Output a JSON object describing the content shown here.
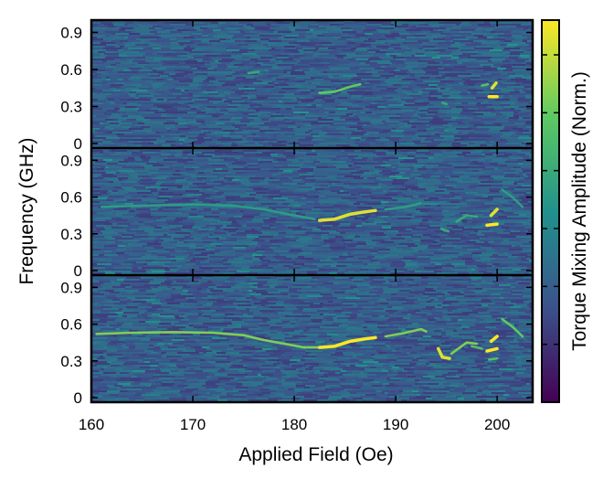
{
  "chart_data": {
    "type": "heatmap",
    "xlabel": "Applied Field (Oe)",
    "ylabel": "Frequency (GHz)",
    "colorbar_label": "Torque Mixing Amplitude (Norm.)",
    "colormap": "viridis",
    "colormap_stops": [
      "#440154",
      "#3b528b",
      "#21918c",
      "#5ec962",
      "#fde725"
    ],
    "xlim": [
      160,
      203.5
    ],
    "ylim": [
      0,
      1.0
    ],
    "x_ticks": [
      160,
      170,
      180,
      190,
      200
    ],
    "x_tick_labels": [
      "160",
      "170",
      "180",
      "190",
      "200"
    ],
    "y_ticks": [
      0,
      0.3,
      0.6,
      0.9
    ],
    "y_tick_labels": [
      "0",
      "0.3",
      "0.6",
      "0.9"
    ],
    "panels": [
      {
        "name": "top",
        "traces": [
          {
            "points": [
              [
                175.5,
                0.57
              ],
              [
                176.5,
                0.58
              ]
            ],
            "level": 0.6
          },
          {
            "points": [
              [
                182.5,
                0.41
              ],
              [
                184,
                0.42
              ],
              [
                185.5,
                0.46
              ],
              [
                186.5,
                0.48
              ]
            ],
            "level": 0.75
          },
          {
            "points": [
              [
                194.6,
                0.33
              ],
              [
                195,
                0.32
              ]
            ],
            "level": 0.6
          },
          {
            "points": [
              [
                199.2,
                0.38
              ],
              [
                200,
                0.38
              ]
            ],
            "level": 1.0
          },
          {
            "points": [
              [
                199.5,
                0.45
              ],
              [
                199.9,
                0.49
              ]
            ],
            "level": 0.95
          },
          {
            "points": [
              [
                198.5,
                0.47
              ],
              [
                199.1,
                0.48
              ]
            ],
            "level": 0.7
          }
        ]
      },
      {
        "name": "middle",
        "traces": [
          {
            "points": [
              [
                161,
                0.52
              ],
              [
                165,
                0.53
              ],
              [
                170,
                0.54
              ],
              [
                174,
                0.53
              ],
              [
                177,
                0.5
              ],
              [
                180,
                0.45
              ],
              [
                182,
                0.42
              ]
            ],
            "level": 0.55
          },
          {
            "points": [
              [
                182.5,
                0.41
              ],
              [
                184,
                0.42
              ],
              [
                185.5,
                0.46
              ],
              [
                187,
                0.48
              ],
              [
                188,
                0.49
              ]
            ],
            "level": 0.95
          },
          {
            "points": [
              [
                189,
                0.5
              ],
              [
                191,
                0.52
              ],
              [
                192.5,
                0.55
              ]
            ],
            "level": 0.55
          },
          {
            "points": [
              [
                194.5,
                0.34
              ],
              [
                195.2,
                0.32
              ]
            ],
            "level": 0.6
          },
          {
            "points": [
              [
                196,
                0.4
              ],
              [
                197,
                0.45
              ],
              [
                198,
                0.44
              ]
            ],
            "level": 0.6
          },
          {
            "points": [
              [
                199,
                0.37
              ],
              [
                200,
                0.38
              ]
            ],
            "level": 1.0
          },
          {
            "points": [
              [
                199.4,
                0.45
              ],
              [
                200,
                0.5
              ]
            ],
            "level": 0.95
          },
          {
            "points": [
              [
                200.5,
                0.66
              ],
              [
                201.5,
                0.6
              ],
              [
                202.5,
                0.52
              ]
            ],
            "level": 0.55
          }
        ]
      },
      {
        "name": "bottom",
        "traces": [
          {
            "points": [
              [
                160.5,
                0.52
              ],
              [
                164,
                0.53
              ],
              [
                168,
                0.535
              ],
              [
                172,
                0.53
              ],
              [
                175,
                0.51
              ],
              [
                177,
                0.47
              ],
              [
                179,
                0.44
              ],
              [
                181,
                0.41
              ],
              [
                182.5,
                0.41
              ]
            ],
            "level": 0.8
          },
          {
            "points": [
              [
                182.5,
                0.41
              ],
              [
                184,
                0.42
              ],
              [
                185.5,
                0.46
              ],
              [
                187,
                0.48
              ],
              [
                188,
                0.49
              ]
            ],
            "level": 1.0
          },
          {
            "points": [
              [
                189,
                0.5
              ],
              [
                191,
                0.53
              ],
              [
                192.5,
                0.56
              ],
              [
                193,
                0.54
              ]
            ],
            "level": 0.8
          },
          {
            "points": [
              [
                194.2,
                0.4
              ],
              [
                194.6,
                0.33
              ],
              [
                195.3,
                0.32
              ]
            ],
            "level": 0.95
          },
          {
            "points": [
              [
                195.5,
                0.36
              ],
              [
                197,
                0.45
              ],
              [
                198,
                0.44
              ]
            ],
            "level": 0.8
          },
          {
            "points": [
              [
                197.5,
                0.42
              ],
              [
                198.5,
                0.4
              ]
            ],
            "level": 0.7
          },
          {
            "points": [
              [
                199.2,
                0.31
              ],
              [
                200,
                0.32
              ]
            ],
            "level": 0.7
          },
          {
            "points": [
              [
                199,
                0.38
              ],
              [
                200,
                0.4
              ]
            ],
            "level": 1.0
          },
          {
            "points": [
              [
                199.4,
                0.46
              ],
              [
                200,
                0.5
              ]
            ],
            "level": 1.0
          },
          {
            "points": [
              [
                200.5,
                0.64
              ],
              [
                201.5,
                0.58
              ],
              [
                202.5,
                0.5
              ]
            ],
            "level": 0.75
          }
        ]
      }
    ]
  }
}
